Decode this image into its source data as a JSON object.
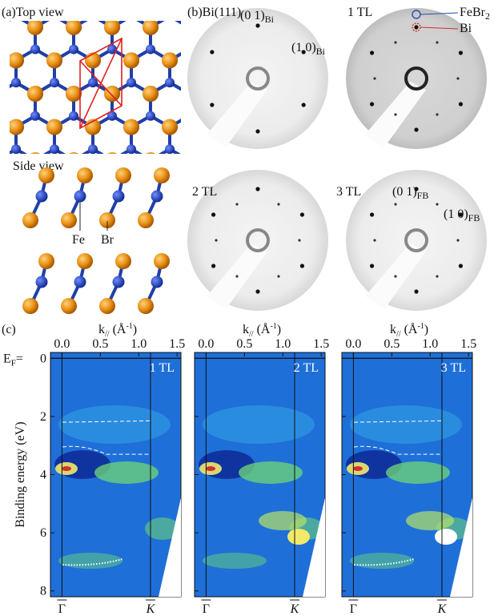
{
  "panel_a": {
    "label": "(a)",
    "top_title": "Top view",
    "side_title": "Side view",
    "fe": "Fe",
    "br": "Br"
  },
  "panel_b": {
    "label": "(b)",
    "patterns": [
      {
        "title": "Bi(111)",
        "spots": [
          {
            "index": "(0 1)",
            "sub": "Bi"
          },
          {
            "index": "(1 0)",
            "sub": "Bi"
          }
        ]
      },
      {
        "title": "1 TL",
        "legend": [
          {
            "name": "FeBr",
            "sub": "2",
            "color": "#2a4fb0"
          },
          {
            "name": "Bi",
            "color": "#d03030"
          }
        ]
      },
      {
        "title": "2 TL"
      },
      {
        "title": "3 TL",
        "spots": [
          {
            "index": "(0 1)",
            "sub": "FB"
          },
          {
            "index": "(1 0)",
            "sub": "FB"
          }
        ]
      }
    ]
  },
  "panel_c": {
    "label": "(c)",
    "x_label": [
      "k",
      "//",
      " (Å",
      "-1",
      ")"
    ],
    "y_label": "Binding energy (eV)",
    "ef": [
      "E",
      "F",
      "="
    ],
    "xlim": [
      -0.15,
      1.55
    ],
    "xticks": [
      {
        "value": 0,
        "label": "0.0"
      },
      0.5,
      {
        "value": 1,
        "label": "1.0"
      },
      1.5
    ],
    "ylim": [
      -0.2,
      8.2
    ],
    "yticks": [
      0,
      2,
      4,
      6,
      8
    ],
    "plots": [
      "1 TL",
      "2 TL",
      "3 TL"
    ],
    "gamma": "Γ",
    "k_point": "K"
  }
}
